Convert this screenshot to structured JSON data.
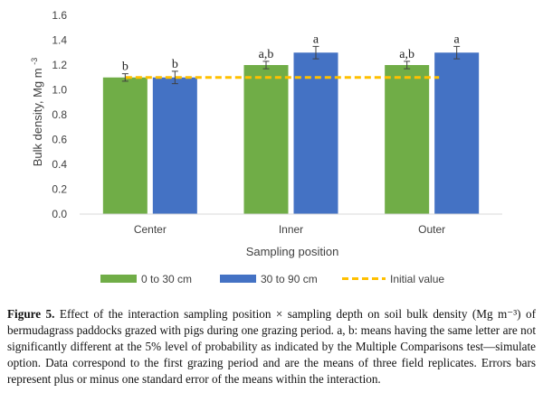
{
  "chart_data": {
    "type": "bar",
    "categories": [
      "Center",
      "Inner",
      "Outer"
    ],
    "series": [
      {
        "name": "0 to 30 cm",
        "color": "#70ad47",
        "values": [
          1.1,
          1.2,
          1.2
        ],
        "errors": [
          0.03,
          0.03,
          0.03
        ],
        "letters": [
          "b",
          "a,b",
          "a,b"
        ]
      },
      {
        "name": "30 to 90 cm",
        "color": "#4472c4",
        "values": [
          1.1,
          1.3,
          1.3
        ],
        "errors": [
          0.05,
          0.05,
          0.05
        ],
        "letters": [
          "b",
          "a",
          "a"
        ]
      }
    ],
    "reference_line": {
      "name": "Initial value",
      "value": 1.1,
      "color": "#ffc000",
      "style": "dashed"
    },
    "xlabel": "Sampling position",
    "ylabel": "Bulk density, Mg m",
    "ylabel_superscript": "-3",
    "ylim": [
      0,
      1.6
    ],
    "yticks": [
      "0.0",
      "0.2",
      "0.4",
      "0.6",
      "0.8",
      "1.0",
      "1.2",
      "1.4",
      "1.6"
    ],
    "legend_position": "bottom",
    "grid": false
  },
  "caption": {
    "label": "Figure 5.",
    "text": "Effect of the interaction sampling position × sampling depth on soil bulk density (Mg m⁻³) of bermudagrass paddocks grazed with pigs during one grazing period. a, b: means having the same letter are not significantly different at the 5% level of probability as indicated by the Multiple Comparisons test—simulate option. Data correspond to the first grazing period and are the means of three field replicates. Errors bars represent plus or minus one standard error of the means within the interaction."
  }
}
